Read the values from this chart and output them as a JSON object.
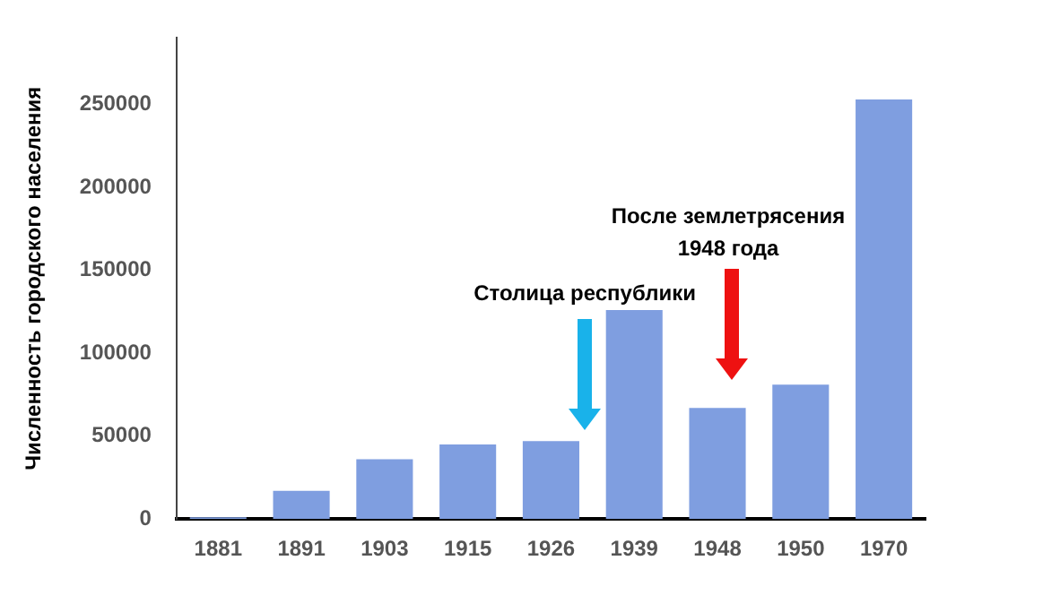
{
  "chart_data": {
    "type": "bar",
    "ylabel": "Численность городского населения",
    "categories": [
      "1881",
      "1891",
      "1903",
      "1915",
      "1926",
      "1939",
      "1948",
      "1950",
      "1970"
    ],
    "values": [
      1000,
      17000,
      36000,
      45000,
      47000,
      126000,
      67000,
      81000,
      253000
    ],
    "color": "#7f9ee0",
    "ylim": [
      0,
      290000
    ],
    "yticks": [
      0,
      50000,
      100000,
      150000,
      200000,
      250000
    ],
    "grid": false,
    "legend": false,
    "annotations": [
      "Столица республики",
      "После землетрясения\n1948 года"
    ]
  }
}
